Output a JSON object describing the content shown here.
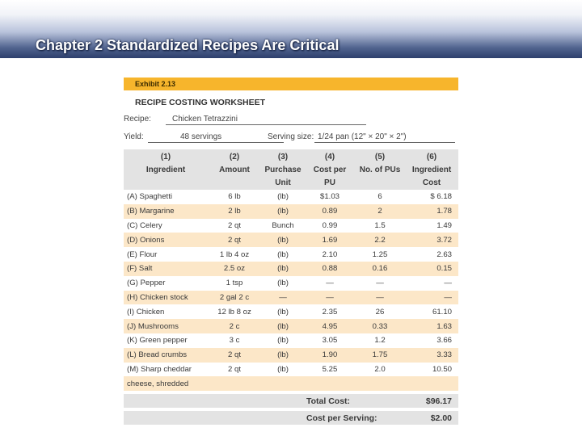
{
  "slide": {
    "title": "Chapter 2 Standardized Recipes Are Critical"
  },
  "worksheet": {
    "exhibit": "Exhibit 2.13",
    "title": "RECIPE COSTING WORKSHEET",
    "recipe_label": "Recipe:",
    "recipe_value": "Chicken Tetrazzini",
    "yield_label": "Yield:",
    "yield_value": "48 servings",
    "serving_label": "Serving size:",
    "serving_value": "1/24 pan (12\" × 20\" × 2\")",
    "columns": [
      {
        "num": "(1)",
        "label": "Ingredient"
      },
      {
        "num": "(2)",
        "label": "Amount"
      },
      {
        "num": "(3)",
        "label": "Purchase Unit"
      },
      {
        "num": "(4)",
        "label": "Cost per PU"
      },
      {
        "num": "(5)",
        "label": "No. of PUs"
      },
      {
        "num": "(6)",
        "label": "Ingredient Cost"
      }
    ],
    "rows": [
      {
        "ingredient": "(A) Spaghetti",
        "amount": "6 lb",
        "unit": "(lb)",
        "cost_per_pu": "$1.03",
        "num_pus": "6",
        "cost": "$ 6.18"
      },
      {
        "ingredient": "(B) Margarine",
        "amount": "2 lb",
        "unit": "(lb)",
        "cost_per_pu": "0.89",
        "num_pus": "2",
        "cost": "1.78"
      },
      {
        "ingredient": "(C) Celery",
        "amount": "2 qt",
        "unit": "Bunch",
        "cost_per_pu": "0.99",
        "num_pus": "1.5",
        "cost": "1.49"
      },
      {
        "ingredient": "(D) Onions",
        "amount": "2 qt",
        "unit": "(lb)",
        "cost_per_pu": "1.69",
        "num_pus": "2.2",
        "cost": "3.72"
      },
      {
        "ingredient": "(E) Flour",
        "amount": "1 lb 4 oz",
        "unit": "(lb)",
        "cost_per_pu": "2.10",
        "num_pus": "1.25",
        "cost": "2.63"
      },
      {
        "ingredient": "(F) Salt",
        "amount": "2.5 oz",
        "unit": "(lb)",
        "cost_per_pu": "0.88",
        "num_pus": "0.16",
        "cost": "0.15"
      },
      {
        "ingredient": "(G) Pepper",
        "amount": "1 tsp",
        "unit": "(lb)",
        "cost_per_pu": "—",
        "num_pus": "—",
        "cost": "—"
      },
      {
        "ingredient": "(H) Chicken stock",
        "amount": "2 gal 2 c",
        "unit": "—",
        "cost_per_pu": "—",
        "num_pus": "—",
        "cost": "—"
      },
      {
        "ingredient": "(I) Chicken",
        "amount": "12 lb 8 oz",
        "unit": "(lb)",
        "cost_per_pu": "2.35",
        "num_pus": "26",
        "cost": "61.10"
      },
      {
        "ingredient": "(J) Mushrooms",
        "amount": "2 c",
        "unit": "(lb)",
        "cost_per_pu": "4.95",
        "num_pus": "0.33",
        "cost": "1.63"
      },
      {
        "ingredient": "(K) Green pepper",
        "amount": "3 c",
        "unit": "(lb)",
        "cost_per_pu": "3.05",
        "num_pus": "1.2",
        "cost": "3.66"
      },
      {
        "ingredient": "(L) Bread crumbs",
        "amount": "2 qt",
        "unit": "(lb)",
        "cost_per_pu": "1.90",
        "num_pus": "1.75",
        "cost": "3.33"
      },
      {
        "ingredient": "(M) Sharp cheddar",
        "amount": "2 qt",
        "unit": "(lb)",
        "cost_per_pu": "5.25",
        "num_pus": "2.0",
        "cost": "10.50"
      },
      {
        "ingredient": "cheese, shredded",
        "amount": "",
        "unit": "",
        "cost_per_pu": "",
        "num_pus": "",
        "cost": ""
      }
    ],
    "total_cost_label": "Total Cost:",
    "total_cost_value": "$96.17",
    "cost_per_serving_label": "Cost per Serving:",
    "cost_per_serving_value": "$2.00",
    "colors": {
      "exhibit_bar": "#f7b52c",
      "row_shade": "#fce7c8",
      "header_bg": "#e3e3e3",
      "slide_header_dark": "#2d3f6c"
    }
  }
}
